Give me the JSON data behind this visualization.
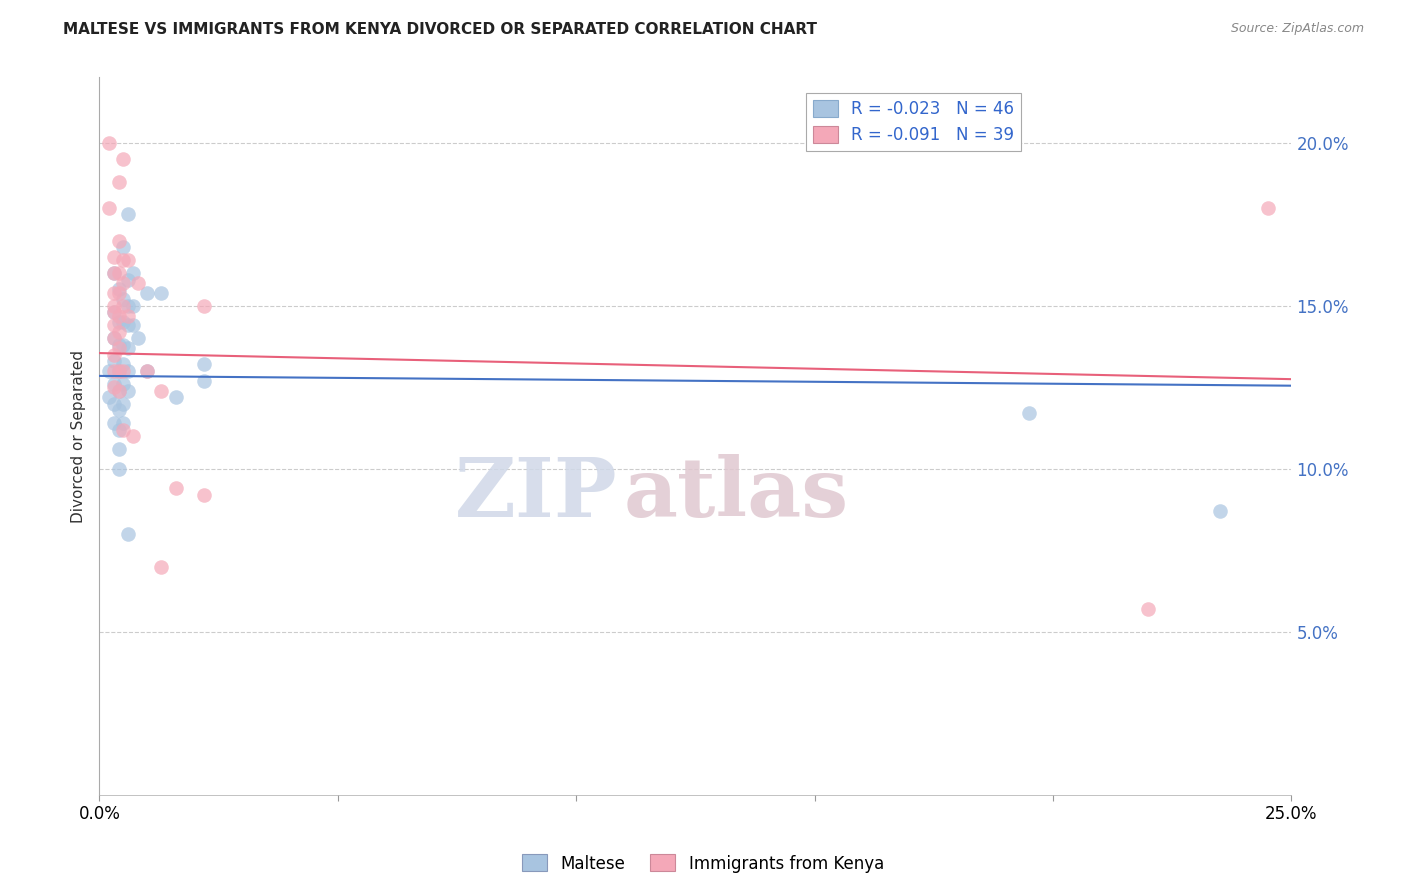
{
  "title": "MALTESE VS IMMIGRANTS FROM KENYA DIVORCED OR SEPARATED CORRELATION CHART",
  "source": "Source: ZipAtlas.com",
  "ylabel": "Divorced or Separated",
  "xlim": [
    0.0,
    0.25
  ],
  "ylim": [
    0.0,
    0.22
  ],
  "yticks": [
    0.05,
    0.1,
    0.15,
    0.2
  ],
  "ytick_labels": [
    "5.0%",
    "10.0%",
    "15.0%",
    "20.0%"
  ],
  "legend_r1": "R = ",
  "legend_r1_val": "-0.023",
  "legend_n1": "N = 46",
  "legend_r2": "R = ",
  "legend_r2_val": "-0.091",
  "legend_n2": "N = 39",
  "blue_color": "#a8c4e0",
  "pink_color": "#f4a8b8",
  "blue_line_color": "#4472c4",
  "pink_line_color": "#e8607a",
  "blue_scatter": [
    [
      0.002,
      0.13
    ],
    [
      0.002,
      0.122
    ],
    [
      0.003,
      0.16
    ],
    [
      0.003,
      0.148
    ],
    [
      0.003,
      0.14
    ],
    [
      0.003,
      0.133
    ],
    [
      0.003,
      0.126
    ],
    [
      0.003,
      0.12
    ],
    [
      0.003,
      0.114
    ],
    [
      0.004,
      0.155
    ],
    [
      0.004,
      0.145
    ],
    [
      0.004,
      0.138
    ],
    [
      0.004,
      0.13
    ],
    [
      0.004,
      0.124
    ],
    [
      0.004,
      0.118
    ],
    [
      0.004,
      0.112
    ],
    [
      0.004,
      0.106
    ],
    [
      0.004,
      0.1
    ],
    [
      0.005,
      0.168
    ],
    [
      0.005,
      0.152
    ],
    [
      0.005,
      0.145
    ],
    [
      0.005,
      0.138
    ],
    [
      0.005,
      0.132
    ],
    [
      0.005,
      0.126
    ],
    [
      0.005,
      0.12
    ],
    [
      0.005,
      0.114
    ],
    [
      0.006,
      0.178
    ],
    [
      0.006,
      0.158
    ],
    [
      0.006,
      0.15
    ],
    [
      0.006,
      0.144
    ],
    [
      0.006,
      0.137
    ],
    [
      0.006,
      0.13
    ],
    [
      0.006,
      0.124
    ],
    [
      0.006,
      0.08
    ],
    [
      0.007,
      0.16
    ],
    [
      0.007,
      0.15
    ],
    [
      0.007,
      0.144
    ],
    [
      0.008,
      0.14
    ],
    [
      0.01,
      0.154
    ],
    [
      0.01,
      0.13
    ],
    [
      0.013,
      0.154
    ],
    [
      0.016,
      0.122
    ],
    [
      0.022,
      0.132
    ],
    [
      0.022,
      0.127
    ],
    [
      0.195,
      0.117
    ],
    [
      0.235,
      0.087
    ]
  ],
  "pink_scatter": [
    [
      0.002,
      0.2
    ],
    [
      0.002,
      0.18
    ],
    [
      0.003,
      0.148
    ],
    [
      0.003,
      0.165
    ],
    [
      0.003,
      0.16
    ],
    [
      0.003,
      0.154
    ],
    [
      0.003,
      0.15
    ],
    [
      0.003,
      0.144
    ],
    [
      0.003,
      0.14
    ],
    [
      0.003,
      0.135
    ],
    [
      0.003,
      0.13
    ],
    [
      0.003,
      0.125
    ],
    [
      0.004,
      0.188
    ],
    [
      0.004,
      0.17
    ],
    [
      0.004,
      0.16
    ],
    [
      0.004,
      0.154
    ],
    [
      0.004,
      0.147
    ],
    [
      0.004,
      0.142
    ],
    [
      0.004,
      0.137
    ],
    [
      0.004,
      0.13
    ],
    [
      0.004,
      0.124
    ],
    [
      0.005,
      0.195
    ],
    [
      0.005,
      0.164
    ],
    [
      0.005,
      0.157
    ],
    [
      0.005,
      0.15
    ],
    [
      0.005,
      0.13
    ],
    [
      0.005,
      0.112
    ],
    [
      0.006,
      0.164
    ],
    [
      0.006,
      0.147
    ],
    [
      0.007,
      0.11
    ],
    [
      0.008,
      0.157
    ],
    [
      0.01,
      0.13
    ],
    [
      0.013,
      0.124
    ],
    [
      0.013,
      0.07
    ],
    [
      0.016,
      0.094
    ],
    [
      0.022,
      0.15
    ],
    [
      0.022,
      0.092
    ],
    [
      0.22,
      0.057
    ],
    [
      0.245,
      0.18
    ]
  ],
  "watermark_zip": "ZIP",
  "watermark_atlas": "atlas",
  "background_color": "#ffffff",
  "grid_color": "#cccccc"
}
